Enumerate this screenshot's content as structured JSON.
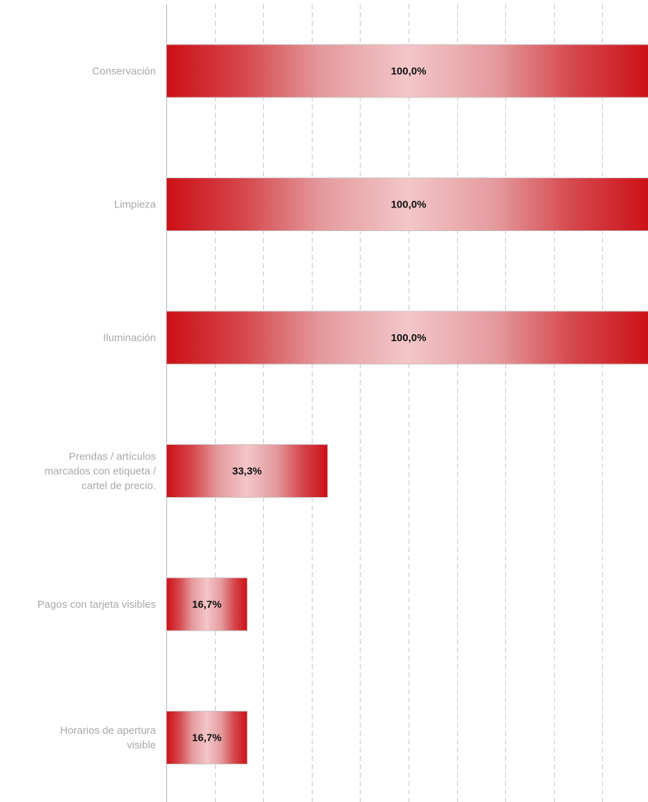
{
  "chart_data": {
    "type": "bar",
    "orientation": "horizontal",
    "categories": [
      [
        "Conservación"
      ],
      [
        "Limpieza"
      ],
      [
        "Iluminación"
      ],
      [
        "Prendas / artículos",
        "marcados con etiqueta /",
        "cartel de precio."
      ],
      [
        "Pagos con tarjeta visibles"
      ],
      [
        "Horarios de apertura",
        "visible"
      ]
    ],
    "values": [
      100.0,
      100.0,
      100.0,
      33.3,
      16.7,
      16.7
    ],
    "value_labels": [
      "100,0%",
      "100,0%",
      "100,0%",
      "33,3%",
      "16,7%",
      "16,7%"
    ],
    "xlim": [
      0,
      100
    ],
    "gridlines_x": [
      0,
      10,
      20,
      30,
      40,
      50,
      60,
      70,
      80,
      90
    ],
    "grid": true,
    "legend": "none",
    "title": "",
    "xlabel": "",
    "ylabel": "",
    "colors": {
      "bar_edge": "#cc1016",
      "bar_center": "#f3c6c8",
      "label_text": "#a8a8a8",
      "value_text": "#111111",
      "grid": "#c4c4c4"
    }
  }
}
